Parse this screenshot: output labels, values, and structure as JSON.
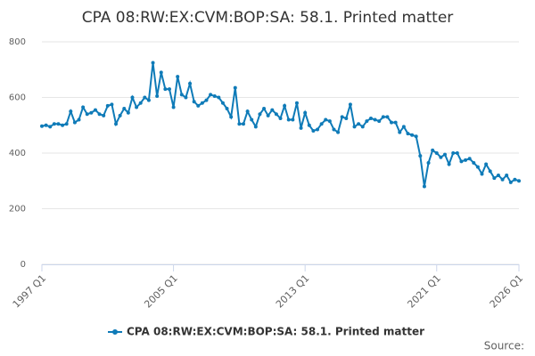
{
  "chart_data": {
    "type": "line",
    "title": "CPA 08:RW:EX:CVM:BOP:SA: 58.1. Printed matter",
    "categories": [
      "1997 Q1",
      null,
      null,
      null,
      null,
      null,
      null,
      null,
      null,
      null,
      null,
      null,
      null,
      null,
      null,
      null,
      null,
      null,
      null,
      null,
      null,
      null,
      null,
      null,
      null,
      null,
      null,
      null,
      null,
      null,
      null,
      null,
      "2005 Q1",
      null,
      null,
      null,
      null,
      null,
      null,
      null,
      null,
      null,
      null,
      null,
      null,
      null,
      null,
      null,
      null,
      null,
      null,
      null,
      null,
      null,
      null,
      null,
      null,
      null,
      null,
      null,
      null,
      null,
      null,
      null,
      "2013 Q1",
      null,
      null,
      null,
      null,
      null,
      null,
      null,
      null,
      null,
      null,
      null,
      null,
      null,
      null,
      null,
      null,
      null,
      null,
      null,
      null,
      null,
      null,
      null,
      null,
      null,
      null,
      null,
      null,
      null,
      null,
      null,
      "2021 Q1",
      null,
      null,
      null,
      null,
      null,
      null,
      null,
      null,
      null,
      null,
      null,
      null,
      null,
      null,
      null,
      null,
      null,
      null,
      null,
      "2026 Q1"
    ],
    "series": [
      {
        "name": "CPA 08:RW:EX:CVM:BOP:SA: 58.1. Printed matter",
        "color": "#0f7bb8",
        "values": [
          497,
          500,
          495,
          505,
          505,
          500,
          505,
          550,
          510,
          520,
          565,
          540,
          545,
          555,
          540,
          535,
          570,
          575,
          505,
          535,
          560,
          545,
          600,
          565,
          580,
          600,
          590,
          725,
          605,
          690,
          630,
          630,
          565,
          675,
          610,
          600,
          650,
          585,
          570,
          580,
          590,
          610,
          605,
          600,
          580,
          560,
          530,
          635,
          505,
          505,
          550,
          520,
          495,
          540,
          560,
          535,
          555,
          540,
          525,
          570,
          520,
          520,
          580,
          490,
          545,
          500,
          480,
          485,
          505,
          520,
          515,
          485,
          475,
          530,
          525,
          575,
          495,
          505,
          495,
          515,
          525,
          520,
          515,
          530,
          530,
          510,
          510,
          475,
          495,
          470,
          465,
          460,
          390,
          280,
          365,
          410,
          400,
          385,
          395,
          360,
          400,
          400,
          370,
          375,
          380,
          365,
          350,
          325,
          360,
          335,
          310,
          320,
          305,
          320,
          295,
          305,
          300
        ]
      }
    ],
    "ylim": [
      0,
      800
    ],
    "yticks": [
      0,
      200,
      400,
      600,
      800
    ],
    "grid": true,
    "legend": "bottom",
    "source": "Source:"
  }
}
